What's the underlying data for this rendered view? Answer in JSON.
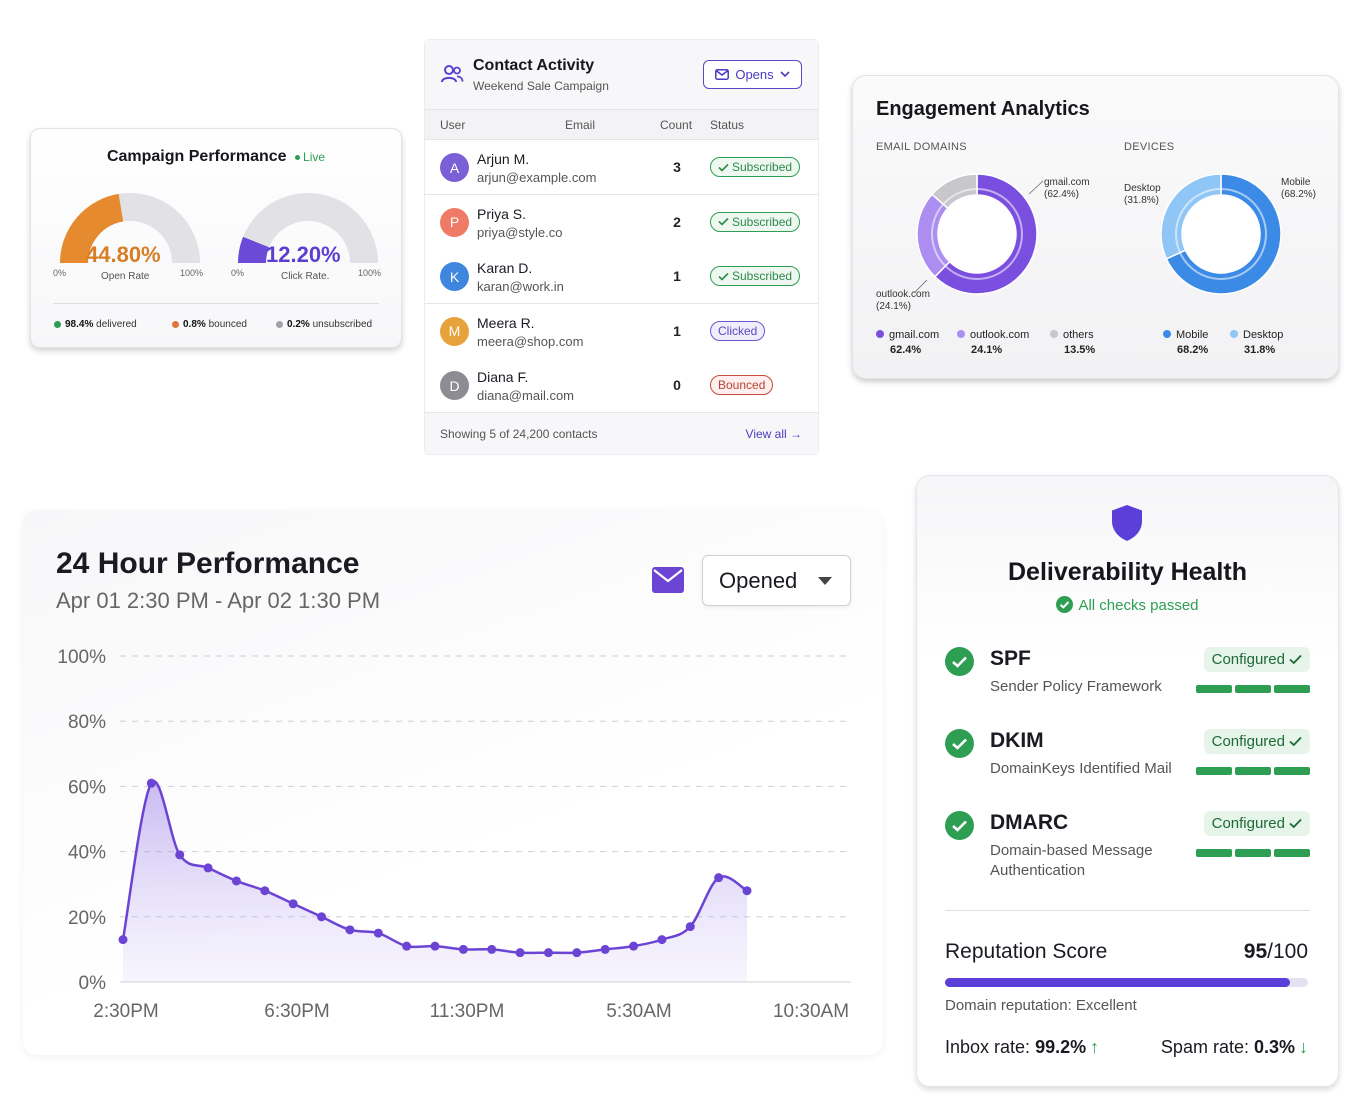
{
  "campaign": {
    "title": "Campaign Performance",
    "live": "Live",
    "open_rate": {
      "value": "44.80%",
      "label": "Open Rate",
      "fraction": 0.448,
      "min": "0%",
      "max": "100%"
    },
    "click_rate": {
      "value": "12.20%",
      "label": "Click Rate.",
      "fraction": 0.122,
      "min": "0%",
      "max": "100%"
    },
    "stats": [
      {
        "value": "98.4%",
        "label": "delivered",
        "color": "#2e9e53"
      },
      {
        "value": "0.8%",
        "label": "bounced",
        "color": "#e2743a"
      },
      {
        "value": "0.2%",
        "label": "unsubscribed",
        "color": "#a0a0a8"
      }
    ],
    "colors": {
      "open": "#e58a2e",
      "click": "#6b4ad8",
      "track": "#e2e2e6"
    }
  },
  "contacts": {
    "title": "Contact Activity",
    "subtitle": "Weekend Sale Campaign",
    "filter_label": "Opens",
    "columns": [
      "User",
      "Email",
      "Count",
      "Status"
    ],
    "rows": [
      {
        "initial": "A",
        "name": "Arjun M.",
        "email": "arjun@example.com",
        "count": "3",
        "status": "Subscribed",
        "status_type": "sub",
        "color": "#7b5fd6"
      },
      {
        "initial": "P",
        "name": "Priya S.",
        "email": "priya@style.co",
        "count": "2",
        "status": "Subscribed",
        "status_type": "sub",
        "color": "#ef7a66"
      },
      {
        "initial": "K",
        "name": "Karan D.",
        "email": "karan@work.in",
        "count": "1",
        "status": "Subscribed",
        "status_type": "sub",
        "color": "#3f86de"
      },
      {
        "initial": "M",
        "name": "Meera R.",
        "email": "meera@shop.com",
        "count": "1",
        "status": "Clicked",
        "status_type": "clk",
        "color": "#e8a23c"
      },
      {
        "initial": "D",
        "name": "Diana F.",
        "email": "diana@mail.com",
        "count": "0",
        "status": "Bounced",
        "status_type": "bnc",
        "color": "#8c8c92"
      }
    ],
    "showing": "Showing 5 of 24,200 contacts",
    "view_all": "View all →"
  },
  "engagement": {
    "title": "Engagement Analytics",
    "domains_label": "EMAIL DOMAINS",
    "devices_label": "DEVICES",
    "domains": [
      {
        "name": "gmail.com",
        "value": 62.4,
        "display": "62.4%",
        "callout": "(62.4%)",
        "color": "#7a4fe0"
      },
      {
        "name": "outlook.com",
        "value": 24.1,
        "display": "24.1%",
        "callout": "(24.1%)",
        "color": "#ab8ef0"
      },
      {
        "name": "others",
        "value": 13.5,
        "display": "13.5%",
        "color": "#c8c8cc"
      }
    ],
    "devices": [
      {
        "name": "Mobile",
        "value": 68.2,
        "display": "68.2%",
        "callout": "(68.2%)",
        "color": "#3a8ae6"
      },
      {
        "name": "Desktop",
        "value": 31.8,
        "display": "31.8%",
        "callout": "(31.8%)",
        "color": "#8fc6f6"
      }
    ]
  },
  "performance": {
    "title": "24 Hour Performance",
    "range": "Apr 01 2:30 PM - Apr 02 1:30 PM",
    "metric": "Opened",
    "chart_data": {
      "type": "area",
      "y_ticks": [
        "100%",
        "80%",
        "60%",
        "40%",
        "20%",
        "0%"
      ],
      "x_ticks": [
        "2:30PM",
        "6:30PM",
        "11:30PM",
        "5:30AM",
        "10:30AM"
      ],
      "ylim": [
        0,
        100
      ],
      "series": [
        {
          "values": [
            13,
            61,
            39,
            35,
            31,
            28,
            24,
            20,
            16,
            15,
            11,
            11,
            10,
            10,
            9,
            9,
            9,
            10,
            11,
            13,
            17,
            32,
            28
          ]
        }
      ],
      "color": "#6b44d4",
      "grid": true
    }
  },
  "deliverability": {
    "title": "Deliverability Health",
    "status": "All checks passed",
    "checks": [
      {
        "name": "SPF",
        "desc": "Sender Policy Framework",
        "status": "Configured"
      },
      {
        "name": "DKIM",
        "desc": "DomainKeys Identified Mail",
        "status": "Configured"
      },
      {
        "name": "DMARC",
        "desc": "Domain-based Message Authentication",
        "status": "Configured"
      }
    ],
    "reputation_label": "Reputation Score",
    "score": "95",
    "score_max": "/100",
    "score_fraction": 0.95,
    "domain_reputation": "Domain reputation: Excellent",
    "inbox_label": "Inbox rate: ",
    "inbox_value": "99.2%",
    "spam_label": "Spam rate: ",
    "spam_value": "0.3%"
  }
}
